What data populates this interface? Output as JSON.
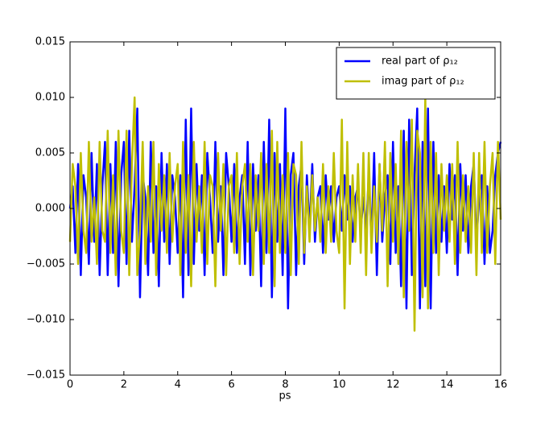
{
  "chart_data": {
    "type": "line",
    "xlabel": "ps",
    "x": [
      0,
      0.1,
      0.2,
      0.3,
      0.4,
      0.5,
      0.6,
      0.7,
      0.8,
      0.9,
      1,
      1.1,
      1.2,
      1.3,
      1.4,
      1.5,
      1.6,
      1.7,
      1.8,
      1.9,
      2,
      2.1,
      2.2,
      2.3,
      2.4,
      2.5,
      2.6,
      2.7,
      2.8,
      2.9,
      3,
      3.1,
      3.2,
      3.3,
      3.4,
      3.5,
      3.6,
      3.7,
      3.8,
      3.9,
      4,
      4.1,
      4.2,
      4.3,
      4.4,
      4.5,
      4.6,
      4.7,
      4.8,
      4.9,
      5,
      5.1,
      5.2,
      5.3,
      5.4,
      5.5,
      5.6,
      5.7,
      5.8,
      5.9,
      6,
      6.1,
      6.2,
      6.3,
      6.4,
      6.5,
      6.6,
      6.7,
      6.8,
      6.9,
      7,
      7.1,
      7.2,
      7.3,
      7.4,
      7.5,
      7.6,
      7.7,
      7.8,
      7.9,
      8,
      8.1,
      8.2,
      8.3,
      8.4,
      8.5,
      8.6,
      8.7,
      8.8,
      8.9,
      9,
      9.1,
      9.2,
      9.3,
      9.4,
      9.5,
      9.6,
      9.7,
      9.8,
      9.9,
      10,
      10.1,
      10.2,
      10.3,
      10.4,
      10.5,
      10.6,
      10.7,
      10.8,
      10.9,
      11,
      11.1,
      11.2,
      11.3,
      11.4,
      11.5,
      11.6,
      11.7,
      11.8,
      11.9,
      12,
      12.1,
      12.2,
      12.3,
      12.4,
      12.5,
      12.6,
      12.7,
      12.8,
      12.9,
      13,
      13.1,
      13.2,
      13.3,
      13.4,
      13.5,
      13.6,
      13.7,
      13.8,
      13.9,
      14,
      14.1,
      14.2,
      14.3,
      14.4,
      14.5,
      14.6,
      14.7,
      14.8,
      14.9,
      15,
      15.1,
      15.2,
      15.3,
      15.4,
      15.5,
      15.6,
      15.7,
      15.8,
      15.9,
      16
    ],
    "series": [
      {
        "name": "real part of ρ₁₂",
        "color": "#0000ff",
        "values": [
          0,
          0.002,
          -0.004,
          0.004,
          -0.006,
          0.003,
          0.001,
          -0.005,
          0.005,
          -0.003,
          0.004,
          -0.006,
          0.002,
          0.006,
          -0.006,
          0.004,
          -0.004,
          0.006,
          -0.007,
          0.003,
          0.006,
          -0.005,
          0.007,
          -0.003,
          0.002,
          0.009,
          -0.008,
          0.003,
          0.001,
          -0.006,
          0.006,
          -0.004,
          0.002,
          -0.007,
          0.005,
          -0.003,
          0.004,
          -0.005,
          0.003,
          0.001,
          -0.004,
          0.003,
          -0.008,
          0.008,
          -0.006,
          0.009,
          -0.005,
          0.004,
          -0.002,
          0.003,
          -0.006,
          0.005,
          0.001,
          -0.004,
          0.006,
          -0.003,
          0.002,
          -0.006,
          0.005,
          0.002,
          -0.003,
          0.004,
          -0.004,
          0.001,
          0.003,
          -0.005,
          0.006,
          -0.006,
          0.004,
          -0.002,
          0.003,
          -0.007,
          0.006,
          -0.004,
          0.008,
          -0.008,
          0.005,
          -0.003,
          0.004,
          -0.006,
          0.009,
          -0.009,
          0.003,
          0.005,
          -0.006,
          0.002,
          0.004,
          -0.005,
          0.003,
          -0.002,
          0.004,
          -0.003,
          0.001,
          0.002,
          -0.004,
          0.003,
          -0.001,
          0.002,
          -0.003,
          0.001,
          0.002,
          -0.002,
          0.003,
          -0.001,
          0.002,
          -0.003,
          0.001,
          0.002,
          -0.002,
          0.001,
          -0.002,
          0.003,
          -0.003,
          0.005,
          -0.006,
          0.004,
          -0.003,
          0.001,
          0.003,
          -0.005,
          0.006,
          -0.004,
          0.002,
          -0.007,
          0.007,
          -0.009,
          0.008,
          -0.006,
          0.003,
          0.009,
          -0.009,
          0.006,
          -0.007,
          0.009,
          -0.009,
          0.006,
          -0.004,
          0.003,
          -0.003,
          0.002,
          -0.004,
          0.004,
          -0.001,
          0.003,
          -0.006,
          0.004,
          -0.002,
          0.003,
          -0.004,
          0.002,
          0.004,
          -0.003,
          0.001,
          0.003,
          -0.005,
          0.002,
          -0.004,
          -0.002,
          0.003,
          0.005,
          0.006
        ]
      },
      {
        "name": "imag part of ρ₁₂",
        "color": "#bfbf00",
        "values": [
          -0.003,
          0.004,
          0.002,
          -0.005,
          0.005,
          -0.002,
          -0.004,
          0.006,
          -0.003,
          0.001,
          -0.005,
          0.006,
          -0.002,
          -0.003,
          0.007,
          -0.004,
          0.003,
          -0.006,
          0.007,
          -0.002,
          -0.004,
          0.007,
          -0.006,
          0.004,
          0.01,
          -0.006,
          -0.002,
          0.006,
          -0.005,
          0.002,
          -0.003,
          0.006,
          -0.006,
          0.004,
          -0.002,
          0.003,
          -0.004,
          0.005,
          -0.003,
          0.002,
          0.004,
          -0.006,
          0.006,
          -0.004,
          0.003,
          -0.007,
          0.006,
          -0.003,
          0.002,
          -0.004,
          0.006,
          -0.005,
          0.003,
          0.002,
          -0.007,
          0.005,
          -0.002,
          0.004,
          -0.006,
          0.002,
          0.003,
          -0.004,
          0.005,
          -0.005,
          0.002,
          0.004,
          -0.003,
          0.004,
          -0.006,
          0.003,
          -0.002,
          0.005,
          -0.005,
          0.004,
          -0.004,
          0.007,
          -0.007,
          0.006,
          -0.004,
          0.003,
          -0.004,
          0.005,
          -0.006,
          0.004,
          0.003,
          -0.005,
          0.006,
          -0.004,
          0.002,
          -0.003,
          0.003,
          -0.002,
          0.001,
          -0.003,
          0.004,
          -0.004,
          0.002,
          -0.003,
          0.005,
          -0.002,
          -0.004,
          0.008,
          -0.009,
          0.006,
          -0.005,
          0.003,
          -0.003,
          0.004,
          -0.004,
          0.005,
          -0.006,
          0.005,
          -0.004,
          0.002,
          -0.003,
          0.004,
          -0.002,
          0.006,
          -0.007,
          0.005,
          -0.003,
          0.004,
          -0.005,
          0.007,
          -0.008,
          0.006,
          -0.002,
          0.008,
          -0.011,
          0.007,
          0.005,
          -0.008,
          0.01,
          -0.009,
          0.006,
          -0.004,
          0.005,
          -0.006,
          0.004,
          -0.002,
          0.003,
          -0.003,
          0.004,
          -0.005,
          0.006,
          -0.004,
          0.003,
          -0.003,
          0.002,
          -0.004,
          0.005,
          -0.006,
          0.005,
          -0.004,
          0.006,
          -0.004,
          0.002,
          0.005,
          -0.005,
          0.006,
          -0.001
        ]
      }
    ],
    "xlim": [
      0,
      16
    ],
    "xticks": [
      0,
      2,
      4,
      6,
      8,
      10,
      12,
      14,
      16
    ],
    "ylim": [
      -0.015,
      0.015
    ],
    "yticks": [
      {
        "value": -0.015,
        "label": "−0.015"
      },
      {
        "value": -0.01,
        "label": "−0.010"
      },
      {
        "value": -0.005,
        "label": "−0.005"
      },
      {
        "value": 0,
        "label": "0.000"
      },
      {
        "value": 0.005,
        "label": "0.005"
      },
      {
        "value": 0.01,
        "label": "0.010"
      },
      {
        "value": 0.015,
        "label": "0.015"
      }
    ],
    "legend": "upper right"
  }
}
